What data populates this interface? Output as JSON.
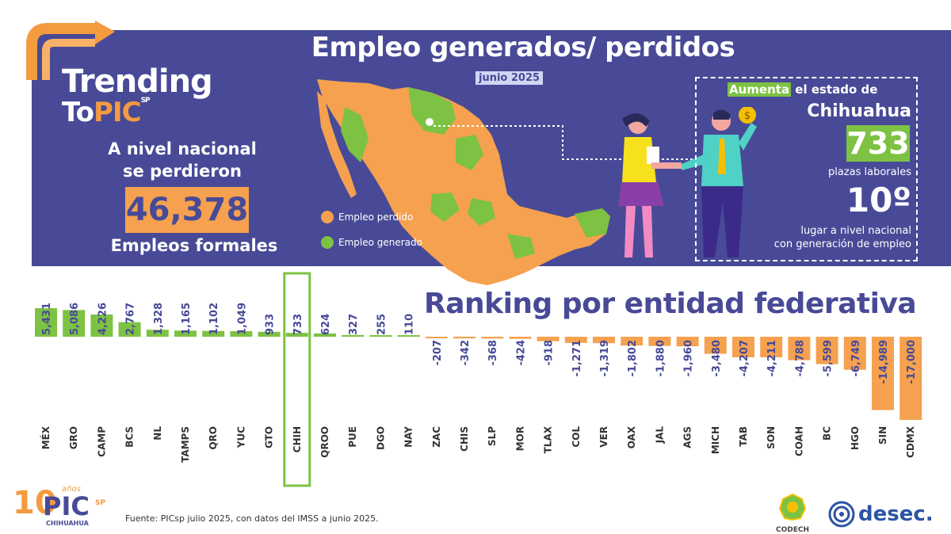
{
  "header": {
    "brand_line1": "Trending",
    "brand_line2_a": "To",
    "brand_line2_b": "PIC",
    "brand_sp": "SP",
    "title": "Empleo generados/ perdidos",
    "subtitle": "junio 2025"
  },
  "national": {
    "line1": "A nivel nacional",
    "line2": "se perdieron",
    "value": "46,378",
    "label": "Empleos formales"
  },
  "legend": {
    "lost": "Empleo perdido",
    "gained": "Empleo generado"
  },
  "callout": {
    "aumenta_hl": "Aumenta",
    "aumenta_rest": " el estado de",
    "state": "Chihuahua",
    "value": "733",
    "value_label": "plazas laborales",
    "rank": "10º",
    "rank_desc_1": "lugar a nivel nacional",
    "rank_desc_2": "con generación de empleo"
  },
  "colors": {
    "banner": "#484a97",
    "orange": "#f5a14f",
    "green": "#7dc242",
    "text_dark": "#484a97"
  },
  "chart_data": {
    "type": "bar",
    "title": "Ranking por entidad federativa",
    "categories": [
      "MÉX",
      "GRO",
      "CAMP",
      "BCS",
      "NL",
      "TAMPS",
      "QRO",
      "YUC",
      "GTO",
      "CHIH",
      "QROO",
      "PUE",
      "DGO",
      "NAY",
      "ZAC",
      "CHIS",
      "SLP",
      "MOR",
      "TLAX",
      "COL",
      "VER",
      "OAX",
      "JAL",
      "AGS",
      "MICH",
      "TAB",
      "SON",
      "COAH",
      "BC",
      "HGO",
      "SIN",
      "CDMX"
    ],
    "values": [
      5431,
      5086,
      4226,
      2767,
      1328,
      1165,
      1102,
      1049,
      933,
      733,
      624,
      327,
      255,
      110,
      -207,
      -342,
      -368,
      -424,
      -918,
      -1271,
      -1319,
      -1802,
      -1880,
      -1960,
      -3480,
      -4207,
      -4211,
      -4788,
      -5599,
      -6749,
      -14989,
      -17000
    ],
    "labels": [
      "5,431",
      "5,086",
      "4,226",
      "2,767",
      "1,328",
      "1,165",
      "1,102",
      "1,049",
      "933",
      "733",
      "624",
      "327",
      "255",
      "110",
      "-207",
      "-342",
      "-368",
      "-424",
      "-918",
      "-1,271",
      "-1,319",
      "-1,802",
      "-1,880",
      "-1,960",
      "-3,480",
      "-4,207",
      "-4,211",
      "-4,788",
      "-5,599",
      "-6,749",
      "-14,989",
      "-17,000"
    ],
    "highlight": "CHIH",
    "positive_color": "#7dc242",
    "negative_color": "#f5a14f"
  },
  "footer": {
    "source": "Fuente: PICsp julio 2025, con datos del IMSS a junio 2025.",
    "logo_big": "10",
    "logo_pic": "PIC",
    "logo_anos": "años",
    "logo_sp": "SP",
    "logo_city": "CHIHUAHUA",
    "codech": "CODECH",
    "desec": "desec."
  }
}
